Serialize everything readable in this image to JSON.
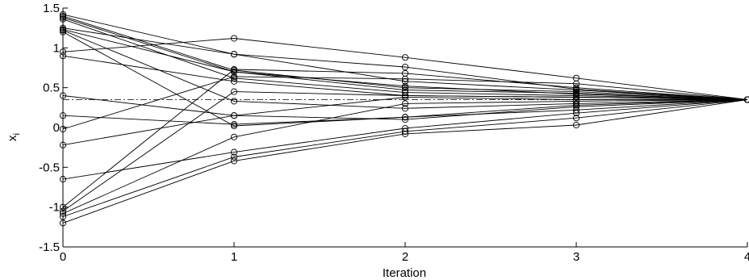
{
  "chart_data": {
    "type": "line",
    "title": "",
    "xlabel": "Iteration",
    "ylabel": "x",
    "ylabel_subscript": "i",
    "xlim": [
      0,
      4
    ],
    "ylim": [
      -1.5,
      1.5
    ],
    "x": [
      0,
      1,
      2,
      3,
      4
    ],
    "xticks": [
      "0",
      "1",
      "2",
      "3",
      "4"
    ],
    "yticks": [
      "-1.5",
      "-1",
      "-0.5",
      "0",
      "0.5",
      "1",
      "1.5"
    ],
    "grid": false,
    "legend": "none",
    "marker": "open-circle",
    "line_color": "#000000",
    "reference_line": {
      "y": 0.35,
      "style": "dash-dot"
    },
    "series": [
      {
        "values": [
          1.42,
          0.92,
          0.58,
          0.47,
          0.35
        ]
      },
      {
        "values": [
          1.4,
          0.72,
          0.5,
          0.45,
          0.35
        ]
      },
      {
        "values": [
          1.38,
          0.7,
          0.47,
          0.43,
          0.35
        ]
      },
      {
        "values": [
          1.36,
          0.62,
          0.44,
          0.4,
          0.35
        ]
      },
      {
        "values": [
          1.25,
          0.92,
          0.76,
          0.48,
          0.35
        ]
      },
      {
        "values": [
          1.23,
          0.7,
          0.52,
          0.42,
          0.35
        ]
      },
      {
        "values": [
          1.22,
          0.33,
          0.24,
          0.3,
          0.35
        ]
      },
      {
        "values": [
          1.2,
          0.02,
          0.13,
          0.22,
          0.35
        ]
      },
      {
        "values": [
          0.95,
          1.12,
          0.88,
          0.62,
          0.35
        ]
      },
      {
        "values": [
          0.9,
          0.58,
          0.4,
          0.38,
          0.35
        ]
      },
      {
        "values": [
          0.4,
          0.15,
          0.38,
          0.35,
          0.35
        ]
      },
      {
        "values": [
          0.15,
          0.04,
          0.13,
          0.28,
          0.35
        ]
      },
      {
        "values": [
          -0.02,
          0.64,
          0.61,
          0.55,
          0.35
        ]
      },
      {
        "values": [
          -0.22,
          0.15,
          0.1,
          0.26,
          0.35
        ]
      },
      {
        "values": [
          -0.65,
          -0.31,
          -0.01,
          0.18,
          0.35
        ]
      },
      {
        "values": [
          -1.0,
          0.73,
          0.68,
          0.5,
          0.35
        ]
      },
      {
        "values": [
          -1.05,
          0.45,
          0.4,
          0.38,
          0.35
        ]
      },
      {
        "values": [
          -1.08,
          -0.12,
          0.3,
          0.33,
          0.35
        ]
      },
      {
        "values": [
          -1.12,
          -0.37,
          -0.05,
          0.12,
          0.35
        ]
      },
      {
        "values": [
          -1.2,
          -0.42,
          -0.08,
          0.03,
          0.35
        ]
      }
    ]
  }
}
